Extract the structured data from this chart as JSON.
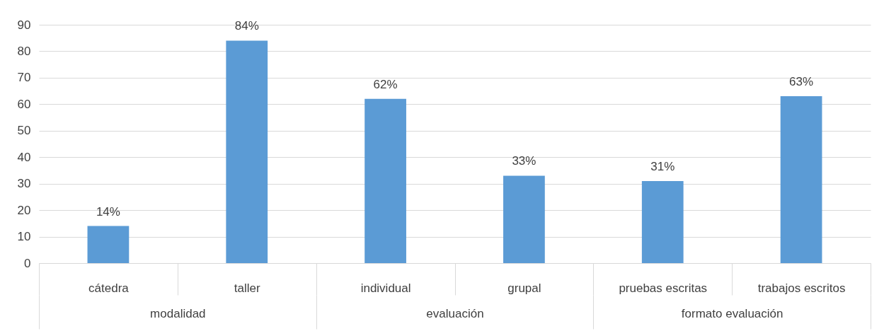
{
  "chart_data": {
    "type": "bar",
    "categories": [
      "cátedra",
      "taller",
      "individual",
      "grupal",
      "pruebas escritas",
      "trabajos escritos"
    ],
    "values": [
      14,
      84,
      62,
      33,
      31,
      63
    ],
    "value_labels": [
      "14%",
      "84%",
      "62%",
      "33%",
      "31%",
      "63%"
    ],
    "color": "#5b9bd5",
    "ylim": [
      0,
      90
    ],
    "yticks": [
      0,
      10,
      20,
      30,
      40,
      50,
      60,
      70,
      80,
      90
    ],
    "grid": "y",
    "annotations": [
      "modalidad",
      "evaluación",
      "formato evaluación"
    ]
  }
}
